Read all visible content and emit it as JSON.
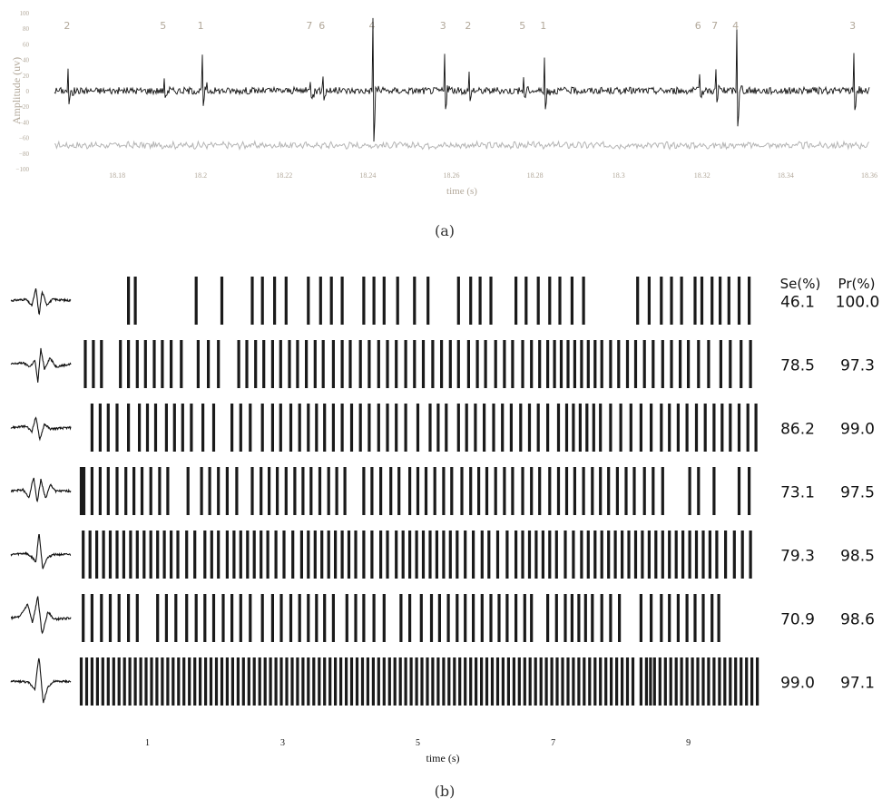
{
  "chart_data": [
    {
      "type": "line",
      "panel_label": "(a)",
      "xlabel": "time (s)",
      "ylabel": "Amplitude (uv)",
      "xlim": [
        18.165,
        18.36
      ],
      "ylim": [
        -100,
        100
      ],
      "x_ticks": [
        {
          "value": 18.18,
          "label": "18.18"
        },
        {
          "value": 18.2,
          "label": "18.2"
        },
        {
          "value": 18.22,
          "label": "18.22"
        },
        {
          "value": 18.24,
          "label": "18.24"
        },
        {
          "value": 18.26,
          "label": "18.26"
        },
        {
          "value": 18.28,
          "label": "18.28"
        },
        {
          "value": 18.3,
          "label": "18.3"
        },
        {
          "value": 18.32,
          "label": "18.32"
        },
        {
          "value": 18.34,
          "label": "18.34"
        },
        {
          "value": 18.36,
          "label": "18.36"
        }
      ],
      "y_ticks": [
        {
          "value": 100,
          "label": "100"
        },
        {
          "value": 80,
          "label": "80"
        },
        {
          "value": 60,
          "label": "60"
        },
        {
          "value": 40,
          "label": "40"
        },
        {
          "value": 20,
          "label": "20"
        },
        {
          "value": 0,
          "label": "0"
        },
        {
          "value": -20,
          "label": "−20"
        },
        {
          "value": -40,
          "label": "−40"
        },
        {
          "value": -60,
          "label": "−60"
        },
        {
          "value": -80,
          "label": "−80"
        },
        {
          "value": -100,
          "label": "−100"
        }
      ],
      "spike_annotations": [
        {
          "label": "2",
          "time": 18.168,
          "amplitude": 25
        },
        {
          "label": "5",
          "time": 18.191,
          "amplitude": 12
        },
        {
          "label": "1",
          "time": 18.2,
          "amplitude": 48
        },
        {
          "label": "7",
          "time": 18.226,
          "amplitude": 15
        },
        {
          "label": "6",
          "time": 18.229,
          "amplitude": 22
        },
        {
          "label": "4",
          "time": 18.241,
          "amplitude": 92
        },
        {
          "label": "3",
          "time": 18.258,
          "amplitude": 45
        },
        {
          "label": "2",
          "time": 18.264,
          "amplitude": 22
        },
        {
          "label": "5",
          "time": 18.277,
          "amplitude": 18
        },
        {
          "label": "1",
          "time": 18.282,
          "amplitude": 38
        },
        {
          "label": "6",
          "time": 18.319,
          "amplitude": 18
        },
        {
          "label": "7",
          "time": 18.323,
          "amplitude": 28
        },
        {
          "label": "4",
          "time": 18.328,
          "amplitude": 76
        },
        {
          "label": "3",
          "time": 18.356,
          "amplitude": 48
        }
      ],
      "series": [
        {
          "role": "recording",
          "color": "#111111",
          "baseline": 0
        },
        {
          "role": "reference",
          "color": "#b5b5b5",
          "baseline": -70
        }
      ],
      "tick_color": "#b2a89a"
    },
    {
      "type": "raster",
      "panel_label": "(b)",
      "xlabel": "time (s)",
      "xlim": [
        0,
        10.2
      ],
      "x_ticks": [
        {
          "value": 1,
          "label": "1"
        },
        {
          "value": 3,
          "label": "3"
        },
        {
          "value": 5,
          "label": "5"
        },
        {
          "value": 7,
          "label": "7"
        },
        {
          "value": 9,
          "label": "9"
        }
      ],
      "columns": [
        "Se(%)",
        "Pr(%)"
      ],
      "units": [
        {
          "se": "46.1",
          "pr": "100.0",
          "shape": "biphasic-small",
          "spikes": [
            0.72,
            0.82,
            1.72,
            2.1,
            2.55,
            2.7,
            2.88,
            3.05,
            3.38,
            3.56,
            3.72,
            3.88,
            4.2,
            4.35,
            4.5,
            4.7,
            4.95,
            5.15,
            5.6,
            5.78,
            5.92,
            6.08,
            6.45,
            6.6,
            6.78,
            6.95,
            7.1,
            7.28,
            7.45,
            8.25,
            8.42,
            8.6,
            8.75,
            8.9,
            9.1,
            9.2,
            9.35,
            9.47,
            9.6,
            9.75,
            9.9
          ]
        },
        {
          "se": "78.5",
          "pr": "97.3",
          "shape": "biphasic-noisy",
          "spikes": [
            0.08,
            0.2,
            0.32,
            0.6,
            0.72,
            0.85,
            0.97,
            1.1,
            1.22,
            1.35,
            1.5,
            1.75,
            1.9,
            2.05,
            2.35,
            2.47,
            2.6,
            2.72,
            2.85,
            2.97,
            3.1,
            3.22,
            3.35,
            3.48,
            3.6,
            3.75,
            3.88,
            4.0,
            4.15,
            4.28,
            4.42,
            4.55,
            4.68,
            4.82,
            4.95,
            5.08,
            5.22,
            5.35,
            5.48,
            5.6,
            5.75,
            5.88,
            6.0,
            6.15,
            6.28,
            6.4,
            6.55,
            6.68,
            6.8,
            6.92,
            7.02,
            7.12,
            7.22,
            7.32,
            7.42,
            7.52,
            7.62,
            7.72,
            7.85,
            7.97,
            8.1,
            8.22,
            8.35,
            8.48,
            8.62,
            8.75,
            8.88,
            9.0,
            9.15,
            9.3,
            9.48,
            9.62,
            9.78,
            9.92
          ]
        },
        {
          "se": "86.2",
          "pr": "99.0",
          "shape": "biphasic-medium",
          "spikes": [
            0.18,
            0.3,
            0.42,
            0.55,
            0.72,
            0.88,
            1.0,
            1.12,
            1.28,
            1.4,
            1.52,
            1.65,
            1.82,
            1.98,
            2.25,
            2.38,
            2.52,
            2.7,
            2.85,
            2.97,
            3.12,
            3.25,
            3.38,
            3.5,
            3.62,
            3.75,
            3.88,
            4.02,
            4.15,
            4.28,
            4.42,
            4.55,
            4.68,
            4.82,
            5.0,
            5.18,
            5.3,
            5.42,
            5.6,
            5.72,
            5.85,
            5.98,
            6.12,
            6.25,
            6.38,
            6.52,
            6.65,
            6.78,
            6.92,
            7.08,
            7.2,
            7.3,
            7.4,
            7.5,
            7.6,
            7.7,
            7.85,
            8.0,
            8.15,
            8.3,
            8.45,
            8.6,
            8.72,
            8.85,
            8.98,
            9.12,
            9.25,
            9.38,
            9.5,
            9.62,
            9.75,
            9.88,
            10.0
          ]
        },
        {
          "se": "73.1",
          "pr": "97.5",
          "shape": "triphasic",
          "spikes": [
            0.02,
            0.06,
            0.18,
            0.3,
            0.42,
            0.55,
            0.68,
            0.8,
            0.92,
            1.05,
            1.18,
            1.3,
            1.6,
            1.8,
            1.92,
            2.05,
            2.18,
            2.32,
            2.55,
            2.68,
            2.8,
            2.92,
            3.05,
            3.18,
            3.3,
            3.42,
            3.55,
            3.68,
            3.8,
            3.92,
            4.2,
            4.32,
            4.45,
            4.6,
            4.72,
            4.88,
            5.0,
            5.12,
            5.25,
            5.38,
            5.5,
            5.65,
            5.78,
            5.9,
            6.02,
            6.15,
            6.28,
            6.4,
            6.55,
            6.68,
            6.8,
            6.95,
            7.08,
            7.2,
            7.32,
            7.45,
            7.58,
            7.7,
            7.82,
            7.95,
            8.08,
            8.2,
            8.35,
            8.48,
            8.62,
            9.02,
            9.15,
            9.38,
            9.75,
            9.9
          ]
        },
        {
          "se": "79.3",
          "pr": "98.5",
          "shape": "monophasic-sharp",
          "spikes": [
            0.05,
            0.15,
            0.25,
            0.35,
            0.45,
            0.55,
            0.65,
            0.75,
            0.85,
            0.95,
            1.05,
            1.15,
            1.25,
            1.35,
            1.45,
            1.58,
            1.7,
            1.85,
            1.95,
            2.05,
            2.18,
            2.28,
            2.38,
            2.48,
            2.58,
            2.68,
            2.78,
            2.9,
            3.02,
            3.15,
            3.28,
            3.38,
            3.48,
            3.58,
            3.68,
            3.78,
            3.88,
            3.98,
            4.08,
            4.2,
            4.32,
            4.45,
            4.55,
            4.68,
            4.78,
            4.88,
            4.98,
            5.08,
            5.18,
            5.28,
            5.38,
            5.48,
            5.58,
            5.7,
            5.82,
            5.95,
            6.05,
            6.18,
            6.32,
            6.45,
            6.55,
            6.65,
            6.75,
            6.85,
            6.95,
            7.05,
            7.18,
            7.3,
            7.42,
            7.52,
            7.62,
            7.72,
            7.82,
            7.92,
            8.02,
            8.12,
            8.22,
            8.32,
            8.42,
            8.52,
            8.62,
            8.72,
            8.82,
            8.92,
            9.02,
            9.12,
            9.22,
            9.32,
            9.42,
            9.55,
            9.68,
            9.8,
            9.92
          ]
        },
        {
          "se": "70.9",
          "pr": "98.6",
          "shape": "biphasic-wide",
          "spikes": [
            0.05,
            0.18,
            0.32,
            0.45,
            0.58,
            0.72,
            0.85,
            1.15,
            1.28,
            1.42,
            1.58,
            1.72,
            1.85,
            1.98,
            2.12,
            2.25,
            2.38,
            2.52,
            2.7,
            2.85,
            2.98,
            3.12,
            3.25,
            3.38,
            3.5,
            3.62,
            3.75,
            3.95,
            4.08,
            4.2,
            4.35,
            4.5,
            4.75,
            4.88,
            5.05,
            5.2,
            5.32,
            5.45,
            5.58,
            5.7,
            5.82,
            5.95,
            6.08,
            6.2,
            6.32,
            6.45,
            6.58,
            6.68,
            6.92,
            7.05,
            7.18,
            7.28,
            7.38,
            7.48,
            7.58,
            7.72,
            7.85,
            7.98,
            8.3,
            8.45,
            8.6,
            8.72,
            8.85,
            8.98,
            9.1,
            9.22,
            9.35,
            9.45
          ]
        },
        {
          "se": "99.0",
          "pr": "97.1",
          "shape": "monophasic-large",
          "spikes": [
            0.02,
            0.1,
            0.18,
            0.26,
            0.34,
            0.42,
            0.5,
            0.58,
            0.66,
            0.74,
            0.82,
            0.9,
            0.98,
            1.06,
            1.14,
            1.22,
            1.3,
            1.38,
            1.46,
            1.54,
            1.62,
            1.7,
            1.78,
            1.86,
            1.94,
            2.02,
            2.1,
            2.18,
            2.26,
            2.34,
            2.42,
            2.5,
            2.58,
            2.66,
            2.74,
            2.82,
            2.9,
            2.98,
            3.06,
            3.14,
            3.22,
            3.3,
            3.38,
            3.46,
            3.54,
            3.62,
            3.7,
            3.78,
            3.86,
            3.94,
            4.02,
            4.1,
            4.18,
            4.26,
            4.34,
            4.42,
            4.5,
            4.58,
            4.66,
            4.74,
            4.82,
            4.9,
            4.98,
            5.06,
            5.14,
            5.22,
            5.3,
            5.38,
            5.46,
            5.54,
            5.62,
            5.7,
            5.78,
            5.86,
            5.94,
            6.02,
            6.1,
            6.18,
            6.26,
            6.34,
            6.42,
            6.5,
            6.58,
            6.66,
            6.74,
            6.82,
            6.9,
            6.98,
            7.06,
            7.14,
            7.22,
            7.3,
            7.38,
            7.46,
            7.54,
            7.62,
            7.7,
            7.78,
            7.86,
            7.94,
            8.02,
            8.1,
            8.18,
            8.3,
            8.38,
            8.44,
            8.5,
            8.58,
            8.66,
            8.74,
            8.82,
            8.9,
            8.98,
            9.06,
            9.14,
            9.22,
            9.3,
            9.38,
            9.46,
            9.54,
            9.62,
            9.7,
            9.78,
            9.86,
            9.94,
            10.02
          ]
        }
      ]
    }
  ]
}
